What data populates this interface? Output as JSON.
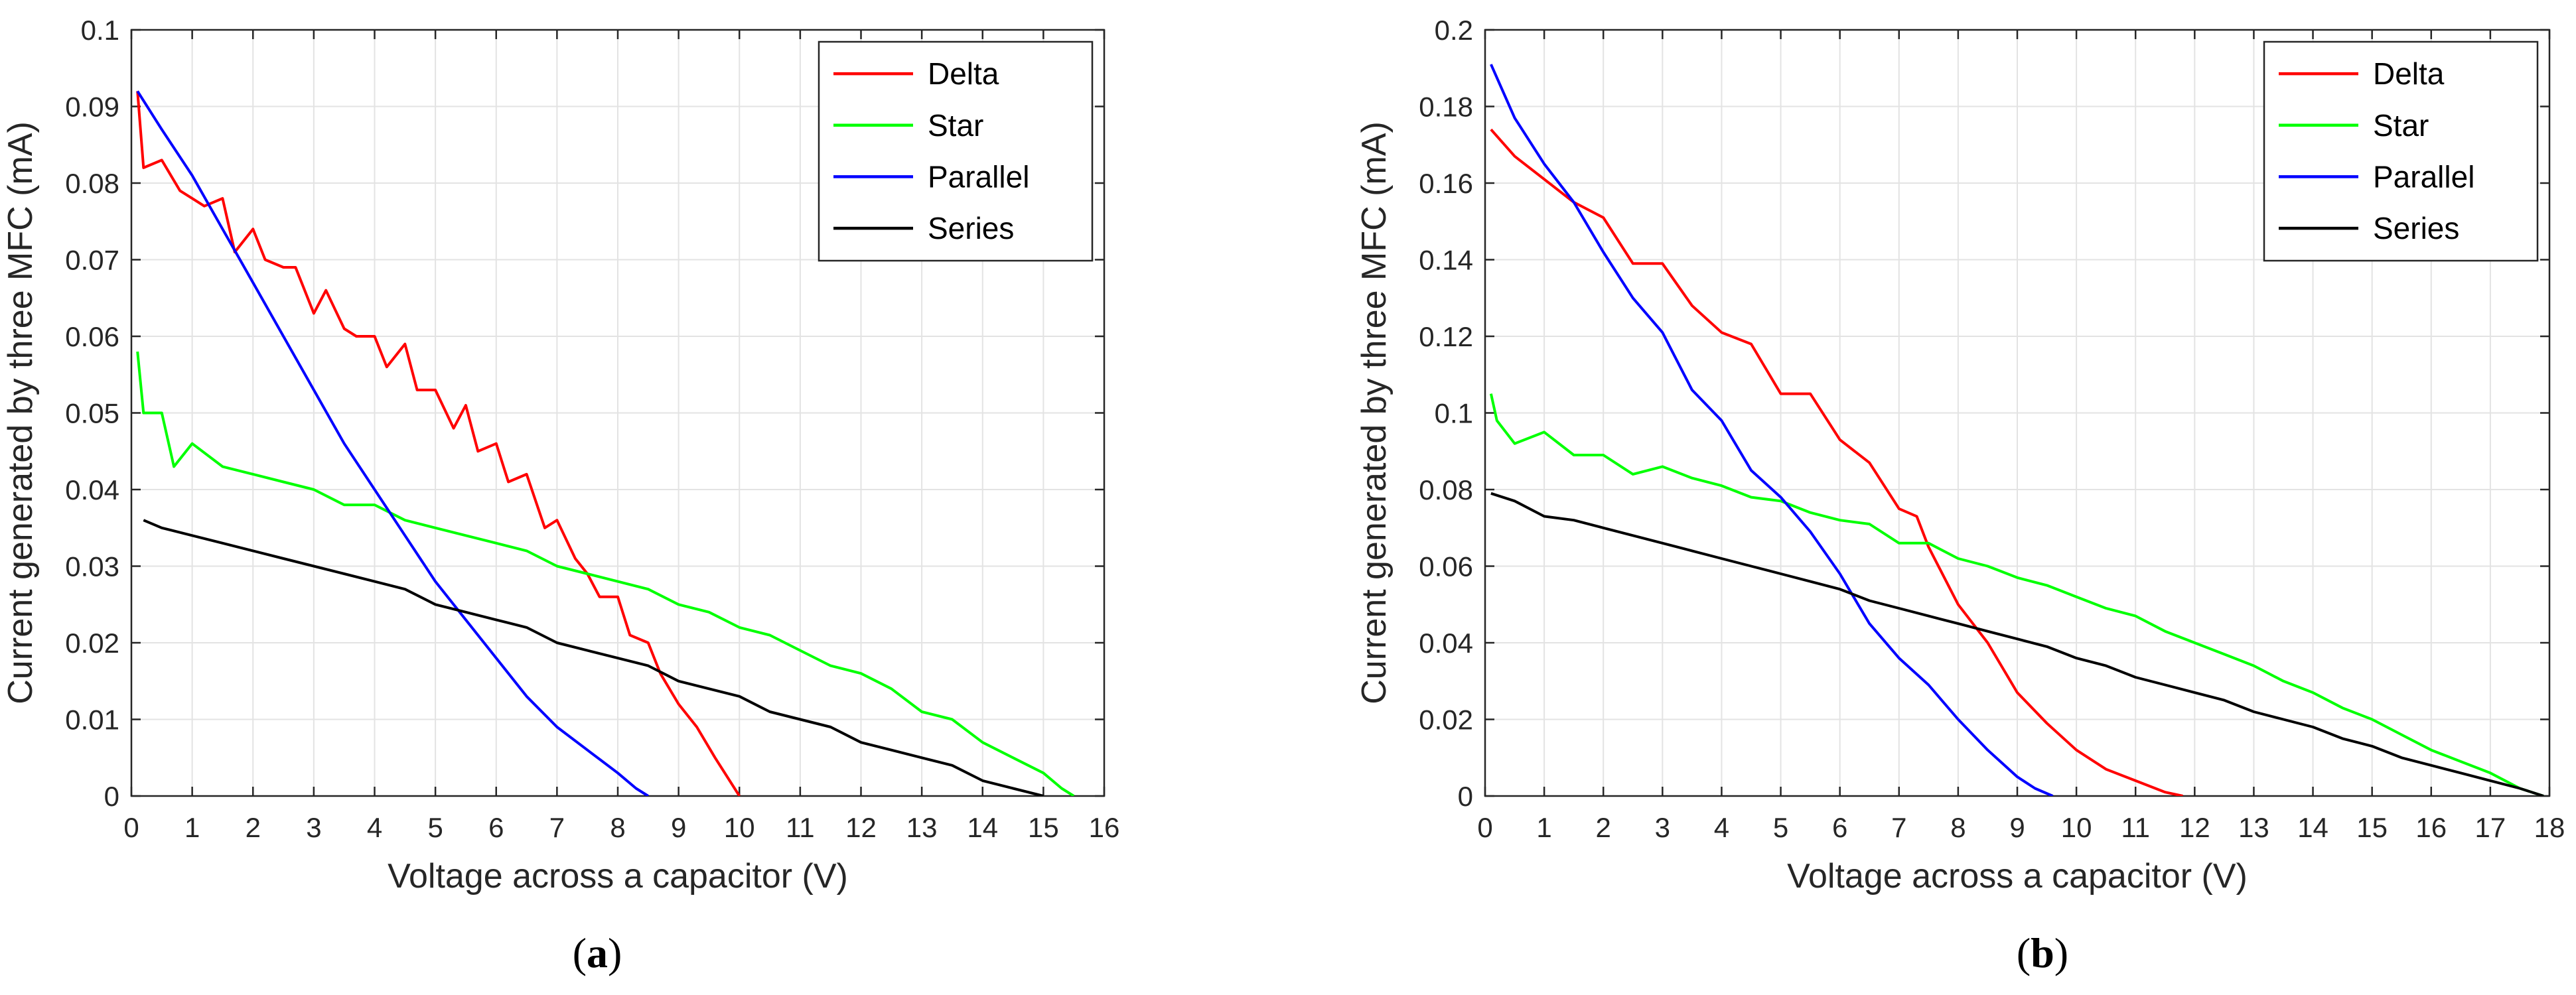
{
  "figure": {
    "panel_labels": [
      {
        "open": "(",
        "letter": "a",
        "close": ")"
      },
      {
        "open": "(",
        "letter": "b",
        "close": ")"
      }
    ]
  },
  "chart_data": [
    {
      "type": "line",
      "xlabel": "Voltage across a capacitor (V)",
      "ylabel": "Current generated by three MFC (mA)",
      "xlim": [
        0,
        16
      ],
      "ylim": [
        0,
        0.1
      ],
      "xticks": [
        0,
        1,
        2,
        3,
        4,
        5,
        6,
        7,
        8,
        9,
        10,
        11,
        12,
        13,
        14,
        15,
        16
      ],
      "yticks": [
        0,
        0.01,
        0.02,
        0.03,
        0.04,
        0.05,
        0.06,
        0.07,
        0.08,
        0.09,
        0.1
      ],
      "ytick_labels": [
        "0",
        "0.01",
        "0.02",
        "0.03",
        "0.04",
        "0.05",
        "0.06",
        "0.07",
        "0.08",
        "0.09",
        "0.1"
      ],
      "grid": true,
      "legend_position": "top-right",
      "series": [
        {
          "name": "Delta",
          "color": "#ff0000",
          "x": [
            0.1,
            0.2,
            0.5,
            0.8,
            1.0,
            1.2,
            1.5,
            1.7,
            2.0,
            2.2,
            2.5,
            2.7,
            3.0,
            3.2,
            3.5,
            3.7,
            4.0,
            4.2,
            4.5,
            4.7,
            5.0,
            5.3,
            5.5,
            5.7,
            6.0,
            6.2,
            6.5,
            6.8,
            7.0,
            7.3,
            7.5,
            7.7,
            8.0,
            8.2,
            8.5,
            8.7,
            9.0,
            9.3,
            9.6,
            10.0
          ],
          "y": [
            0.092,
            0.082,
            0.083,
            0.079,
            0.078,
            0.077,
            0.078,
            0.071,
            0.074,
            0.07,
            0.069,
            0.069,
            0.063,
            0.066,
            0.061,
            0.06,
            0.06,
            0.056,
            0.059,
            0.053,
            0.053,
            0.048,
            0.051,
            0.045,
            0.046,
            0.041,
            0.042,
            0.035,
            0.036,
            0.031,
            0.029,
            0.026,
            0.026,
            0.021,
            0.02,
            0.016,
            0.012,
            0.009,
            0.005,
            0.0
          ]
        },
        {
          "name": "Star",
          "color": "#00ff00",
          "x": [
            0.1,
            0.2,
            0.5,
            0.7,
            1.0,
            1.5,
            2.0,
            2.5,
            3.0,
            3.5,
            4.0,
            4.5,
            5.0,
            5.5,
            6.0,
            6.5,
            7.0,
            7.5,
            8.0,
            8.5,
            9.0,
            9.5,
            10.0,
            10.5,
            11.0,
            11.5,
            12.0,
            12.5,
            13.0,
            13.5,
            14.0,
            14.5,
            15.0,
            15.3,
            15.5
          ],
          "y": [
            0.058,
            0.05,
            0.05,
            0.043,
            0.046,
            0.043,
            0.042,
            0.041,
            0.04,
            0.038,
            0.038,
            0.036,
            0.035,
            0.034,
            0.033,
            0.032,
            0.03,
            0.029,
            0.028,
            0.027,
            0.025,
            0.024,
            0.022,
            0.021,
            0.019,
            0.017,
            0.016,
            0.014,
            0.011,
            0.01,
            0.007,
            0.005,
            0.003,
            0.001,
            0.0
          ]
        },
        {
          "name": "Parallel",
          "color": "#0000ff",
          "x": [
            0.1,
            0.5,
            1.0,
            1.5,
            2.0,
            2.5,
            3.0,
            3.5,
            4.0,
            4.5,
            5.0,
            5.5,
            6.0,
            6.5,
            7.0,
            7.5,
            8.0,
            8.3,
            8.5
          ],
          "y": [
            0.092,
            0.087,
            0.081,
            0.074,
            0.067,
            0.06,
            0.053,
            0.046,
            0.04,
            0.034,
            0.028,
            0.023,
            0.018,
            0.013,
            0.009,
            0.006,
            0.003,
            0.001,
            0.0
          ]
        },
        {
          "name": "Series",
          "color": "#000000",
          "x": [
            0.2,
            0.5,
            1.0,
            1.5,
            2.0,
            2.5,
            3.0,
            3.5,
            4.0,
            4.5,
            5.0,
            5.5,
            6.0,
            6.5,
            7.0,
            7.5,
            8.0,
            8.5,
            9.0,
            9.5,
            10.0,
            10.5,
            11.0,
            11.5,
            12.0,
            12.5,
            13.0,
            13.5,
            14.0,
            14.5,
            15.0
          ],
          "y": [
            0.036,
            0.035,
            0.034,
            0.033,
            0.032,
            0.031,
            0.03,
            0.029,
            0.028,
            0.027,
            0.025,
            0.024,
            0.023,
            0.022,
            0.02,
            0.019,
            0.018,
            0.017,
            0.015,
            0.014,
            0.013,
            0.011,
            0.01,
            0.009,
            0.007,
            0.006,
            0.005,
            0.004,
            0.002,
            0.001,
            0.0
          ]
        }
      ]
    },
    {
      "type": "line",
      "xlabel": "Voltage across a capacitor (V)",
      "ylabel": "Current generated by three MFC (mA)",
      "xlim": [
        0,
        18
      ],
      "ylim": [
        0,
        0.2
      ],
      "xticks": [
        0,
        1,
        2,
        3,
        4,
        5,
        6,
        7,
        8,
        9,
        10,
        11,
        12,
        13,
        14,
        15,
        16,
        17,
        18
      ],
      "yticks": [
        0,
        0.02,
        0.04,
        0.06,
        0.08,
        0.1,
        0.12,
        0.14,
        0.16,
        0.18,
        0.2
      ],
      "ytick_labels": [
        "0",
        "0.02",
        "0.04",
        "0.06",
        "0.08",
        "0.1",
        "0.12",
        "0.14",
        "0.16",
        "0.18",
        "0.2"
      ],
      "grid": true,
      "legend_position": "top-right",
      "series": [
        {
          "name": "Delta",
          "color": "#ff0000",
          "x": [
            0.1,
            0.5,
            1.0,
            1.5,
            2.0,
            2.5,
            3.0,
            3.5,
            4.0,
            4.5,
            5.0,
            5.5,
            6.0,
            6.5,
            7.0,
            7.3,
            7.5,
            8.0,
            8.5,
            9.0,
            9.5,
            10.0,
            10.5,
            11.0,
            11.5,
            11.8
          ],
          "y": [
            0.174,
            0.167,
            0.161,
            0.155,
            0.151,
            0.139,
            0.139,
            0.128,
            0.121,
            0.118,
            0.105,
            0.105,
            0.093,
            0.087,
            0.075,
            0.073,
            0.065,
            0.05,
            0.04,
            0.027,
            0.019,
            0.012,
            0.007,
            0.004,
            0.001,
            0.0
          ]
        },
        {
          "name": "Star",
          "color": "#00ff00",
          "x": [
            0.1,
            0.2,
            0.5,
            1.0,
            1.5,
            2.0,
            2.5,
            3.0,
            3.5,
            4.0,
            4.5,
            5.0,
            5.5,
            6.0,
            6.5,
            7.0,
            7.5,
            8.0,
            8.5,
            9.0,
            9.5,
            10.0,
            10.5,
            11.0,
            11.5,
            12.0,
            12.5,
            13.0,
            13.5,
            14.0,
            14.5,
            15.0,
            15.5,
            16.0,
            16.5,
            17.0,
            17.5,
            17.9
          ],
          "y": [
            0.105,
            0.098,
            0.092,
            0.095,
            0.089,
            0.089,
            0.084,
            0.086,
            0.083,
            0.081,
            0.078,
            0.077,
            0.074,
            0.072,
            0.071,
            0.066,
            0.066,
            0.062,
            0.06,
            0.057,
            0.055,
            0.052,
            0.049,
            0.047,
            0.043,
            0.04,
            0.037,
            0.034,
            0.03,
            0.027,
            0.023,
            0.02,
            0.016,
            0.012,
            0.009,
            0.006,
            0.002,
            0.0
          ]
        },
        {
          "name": "Parallel",
          "color": "#0000ff",
          "x": [
            0.1,
            0.5,
            1.0,
            1.5,
            2.0,
            2.5,
            3.0,
            3.5,
            4.0,
            4.5,
            5.0,
            5.5,
            6.0,
            6.5,
            7.0,
            7.5,
            8.0,
            8.5,
            9.0,
            9.3,
            9.6
          ],
          "y": [
            0.191,
            0.177,
            0.165,
            0.155,
            0.142,
            0.13,
            0.121,
            0.106,
            0.098,
            0.085,
            0.078,
            0.069,
            0.058,
            0.045,
            0.036,
            0.029,
            0.02,
            0.012,
            0.005,
            0.002,
            0.0
          ]
        },
        {
          "name": "Series",
          "color": "#000000",
          "x": [
            0.1,
            0.5,
            1.0,
            1.5,
            2.0,
            2.5,
            3.0,
            3.5,
            4.0,
            4.5,
            5.0,
            5.5,
            6.0,
            6.5,
            7.0,
            7.5,
            8.0,
            8.5,
            9.0,
            9.5,
            10.0,
            10.5,
            11.0,
            11.5,
            12.0,
            12.5,
            13.0,
            13.5,
            14.0,
            14.5,
            15.0,
            15.5,
            16.0,
            16.5,
            17.0,
            17.5,
            17.9
          ],
          "y": [
            0.079,
            0.077,
            0.073,
            0.072,
            0.07,
            0.068,
            0.066,
            0.064,
            0.062,
            0.06,
            0.058,
            0.056,
            0.054,
            0.051,
            0.049,
            0.047,
            0.045,
            0.043,
            0.041,
            0.039,
            0.036,
            0.034,
            0.031,
            0.029,
            0.027,
            0.025,
            0.022,
            0.02,
            0.018,
            0.015,
            0.013,
            0.01,
            0.008,
            0.006,
            0.004,
            0.002,
            0.0
          ]
        }
      ]
    }
  ]
}
